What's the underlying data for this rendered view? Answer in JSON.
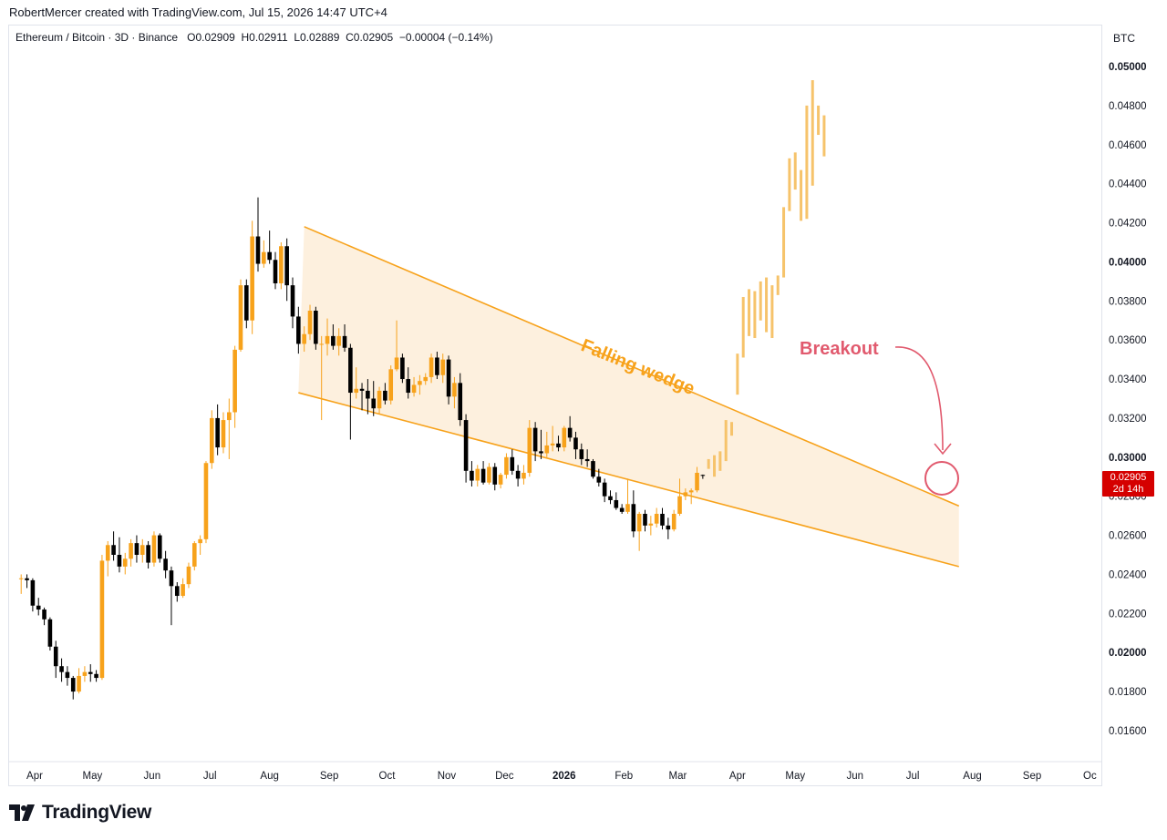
{
  "header": {
    "credit": "RobertMercer created with TradingView.com, Jul 15, 2026 14:47 UTC+4",
    "symbol": "Ethereum / Bitcoin · 3D · Binance",
    "ohlc": {
      "o_label": "O",
      "o": "0.02909",
      "h_label": "H",
      "h": "0.02911",
      "l_label": "L",
      "l": "0.02889",
      "c_label": "C",
      "c": "0.02905",
      "change": "−0.00004 (−0.14%)"
    },
    "unit": "BTC"
  },
  "brand": {
    "name": "TradingView"
  },
  "price_badge": {
    "price": "0.02905",
    "countdown": "2d 14h"
  },
  "colors": {
    "up": "#f7a21b",
    "down": "#000000",
    "wedge_line": "#f7a21b",
    "wedge_fill": "#fdf0de",
    "projection": "#f6c36b",
    "annotation": "#e15a6e",
    "wedge_text": "#f7a21b"
  },
  "annotations": {
    "wedge_label": "Falling wedge",
    "breakout_label": "Breakout"
  },
  "chart_data": {
    "type": "candlestick",
    "title": "Ethereum / Bitcoin · 3D · Binance",
    "ylabel": "BTC",
    "ylim": [
      0.015,
      0.052
    ],
    "y_ticks": [
      "0.05000",
      "0.04800",
      "0.04600",
      "0.04400",
      "0.04200",
      "0.04000",
      "0.03800",
      "0.03600",
      "0.03400",
      "0.03200",
      "0.03000",
      "0.02800",
      "0.02600",
      "0.02400",
      "0.02200",
      "0.02000",
      "0.01800",
      "0.01600"
    ],
    "y_ticks_bold": [
      "0.05000",
      "0.04000",
      "0.03000",
      "0.02000"
    ],
    "x_labels": [
      "Apr",
      "May",
      "Jun",
      "Jul",
      "Aug",
      "Sep",
      "Oct",
      "Nov",
      "Dec",
      "2026",
      "Feb",
      "Mar",
      "Apr",
      "May",
      "Jun",
      "Jul",
      "Aug",
      "Sep",
      "Oc"
    ],
    "x_label_dates": [
      "2025-04-01",
      "2025-05-01",
      "2025-06-01",
      "2025-07-01",
      "2025-08-01",
      "2025-09-01",
      "2025-10-01",
      "2025-11-01",
      "2025-12-01",
      "2026-01-01",
      "2026-02-01",
      "2026-03-01",
      "2026-04-01",
      "2026-05-01",
      "2026-06-01",
      "2026-07-01",
      "2026-08-01",
      "2026-09-01",
      "2026-10-01"
    ],
    "x_bold": [
      "2026"
    ],
    "start_date": "2025-03-25",
    "bar_days": 3,
    "ohlc": [
      [
        0.0238,
        0.024,
        0.023,
        0.0238
      ],
      [
        0.0238,
        0.024,
        0.0233,
        0.0237
      ],
      [
        0.0237,
        0.0238,
        0.0221,
        0.0224
      ],
      [
        0.0224,
        0.0228,
        0.0219,
        0.0222
      ],
      [
        0.0222,
        0.0223,
        0.0214,
        0.0217
      ],
      [
        0.0217,
        0.0218,
        0.0201,
        0.0203
      ],
      [
        0.0203,
        0.0206,
        0.0187,
        0.0193
      ],
      [
        0.0193,
        0.0197,
        0.0185,
        0.019
      ],
      [
        0.019,
        0.0193,
        0.0183,
        0.0187
      ],
      [
        0.0187,
        0.0188,
        0.0176,
        0.018
      ],
      [
        0.018,
        0.0192,
        0.0179,
        0.0188
      ],
      [
        0.0188,
        0.0193,
        0.0185,
        0.019
      ],
      [
        0.019,
        0.0194,
        0.0185,
        0.0189
      ],
      [
        0.0189,
        0.0191,
        0.0185,
        0.0187
      ],
      [
        0.0187,
        0.025,
        0.0186,
        0.0247
      ],
      [
        0.0247,
        0.0257,
        0.0239,
        0.0255
      ],
      [
        0.0255,
        0.0262,
        0.0247,
        0.025
      ],
      [
        0.025,
        0.0259,
        0.0241,
        0.0244
      ],
      [
        0.0244,
        0.0251,
        0.024,
        0.0248
      ],
      [
        0.0248,
        0.0258,
        0.0244,
        0.0256
      ],
      [
        0.0256,
        0.026,
        0.0246,
        0.025
      ],
      [
        0.025,
        0.0258,
        0.0246,
        0.0255
      ],
      [
        0.0255,
        0.0257,
        0.0243,
        0.0246
      ],
      [
        0.0246,
        0.0262,
        0.0244,
        0.026
      ],
      [
        0.026,
        0.0261,
        0.0246,
        0.0248
      ],
      [
        0.0248,
        0.0252,
        0.0238,
        0.0242
      ],
      [
        0.0242,
        0.0244,
        0.0214,
        0.0234
      ],
      [
        0.0234,
        0.0236,
        0.0226,
        0.0229
      ],
      [
        0.0229,
        0.0238,
        0.0228,
        0.0235
      ],
      [
        0.0235,
        0.0246,
        0.0233,
        0.0244
      ],
      [
        0.0244,
        0.0257,
        0.0242,
        0.0256
      ],
      [
        0.0256,
        0.026,
        0.025,
        0.0258
      ],
      [
        0.0258,
        0.0298,
        0.0256,
        0.0297
      ],
      [
        0.0297,
        0.0324,
        0.0294,
        0.032
      ],
      [
        0.032,
        0.0327,
        0.0301,
        0.0305
      ],
      [
        0.0305,
        0.0323,
        0.0302,
        0.0319
      ],
      [
        0.0319,
        0.033,
        0.0299,
        0.0323
      ],
      [
        0.0323,
        0.0357,
        0.0315,
        0.0355
      ],
      [
        0.0355,
        0.0391,
        0.0354,
        0.0388
      ],
      [
        0.0388,
        0.0391,
        0.0366,
        0.037
      ],
      [
        0.037,
        0.0421,
        0.0363,
        0.0413
      ],
      [
        0.0413,
        0.0433,
        0.0395,
        0.0399
      ],
      [
        0.0399,
        0.0411,
        0.0397,
        0.0405
      ],
      [
        0.0405,
        0.0416,
        0.0399,
        0.0401
      ],
      [
        0.0401,
        0.0405,
        0.0386,
        0.0389
      ],
      [
        0.0389,
        0.041,
        0.0386,
        0.0408
      ],
      [
        0.0408,
        0.0412,
        0.038,
        0.0388
      ],
      [
        0.0388,
        0.0392,
        0.0366,
        0.0372
      ],
      [
        0.0372,
        0.0377,
        0.0353,
        0.0358
      ],
      [
        0.0358,
        0.0367,
        0.0354,
        0.0363
      ],
      [
        0.0363,
        0.0378,
        0.036,
        0.0375
      ],
      [
        0.0375,
        0.0377,
        0.0355,
        0.0358
      ],
      [
        0.0358,
        0.0362,
        0.0319,
        0.0358
      ],
      [
        0.0358,
        0.0371,
        0.0352,
        0.0362
      ],
      [
        0.0362,
        0.0368,
        0.0355,
        0.0357
      ],
      [
        0.0357,
        0.0366,
        0.0352,
        0.0362
      ],
      [
        0.0362,
        0.0368,
        0.0354,
        0.0356
      ],
      [
        0.0356,
        0.0358,
        0.0309,
        0.0333
      ],
      [
        0.0333,
        0.0346,
        0.033,
        0.0335
      ],
      [
        0.0335,
        0.0338,
        0.0324,
        0.0334
      ],
      [
        0.0334,
        0.034,
        0.0322,
        0.033
      ],
      [
        0.033,
        0.0339,
        0.0321,
        0.0325
      ],
      [
        0.0325,
        0.0336,
        0.0322,
        0.0334
      ],
      [
        0.0334,
        0.0338,
        0.0327,
        0.0329
      ],
      [
        0.0329,
        0.0347,
        0.0327,
        0.0345
      ],
      [
        0.0345,
        0.037,
        0.0344,
        0.0351
      ],
      [
        0.0351,
        0.0353,
        0.0338,
        0.034
      ],
      [
        0.034,
        0.0346,
        0.033,
        0.0333
      ],
      [
        0.0333,
        0.0341,
        0.0331,
        0.0337
      ],
      [
        0.0337,
        0.0342,
        0.0332,
        0.0339
      ],
      [
        0.0339,
        0.0343,
        0.0337,
        0.0341
      ],
      [
        0.0341,
        0.0353,
        0.0338,
        0.0351
      ],
      [
        0.0351,
        0.0354,
        0.034,
        0.0342
      ],
      [
        0.0342,
        0.0353,
        0.0338,
        0.035
      ],
      [
        0.035,
        0.0352,
        0.0327,
        0.0331
      ],
      [
        0.0331,
        0.0341,
        0.0325,
        0.0338
      ],
      [
        0.0338,
        0.0343,
        0.0316,
        0.0319
      ],
      [
        0.0319,
        0.0322,
        0.0287,
        0.0293
      ],
      [
        0.0293,
        0.0298,
        0.0285,
        0.0288
      ],
      [
        0.0288,
        0.0296,
        0.0285,
        0.0294
      ],
      [
        0.0294,
        0.0298,
        0.0286,
        0.0287
      ],
      [
        0.0287,
        0.0297,
        0.0286,
        0.0295
      ],
      [
        0.0295,
        0.0297,
        0.0283,
        0.0286
      ],
      [
        0.0286,
        0.0292,
        0.0284,
        0.0291
      ],
      [
        0.0291,
        0.0302,
        0.0289,
        0.03
      ],
      [
        0.03,
        0.0304,
        0.0291,
        0.0293
      ],
      [
        0.0293,
        0.0296,
        0.0285,
        0.0289
      ],
      [
        0.0289,
        0.0296,
        0.0286,
        0.0292
      ],
      [
        0.0292,
        0.0319,
        0.029,
        0.0315
      ],
      [
        0.0315,
        0.0318,
        0.0298,
        0.0303
      ],
      [
        0.0303,
        0.0314,
        0.0299,
        0.0302
      ],
      [
        0.0302,
        0.0313,
        0.03,
        0.0306
      ],
      [
        0.0306,
        0.0316,
        0.0303,
        0.0307
      ],
      [
        0.0307,
        0.0311,
        0.0303,
        0.0305
      ],
      [
        0.0305,
        0.0316,
        0.0303,
        0.0315
      ],
      [
        0.0315,
        0.0321,
        0.0308,
        0.031
      ],
      [
        0.031,
        0.0313,
        0.0299,
        0.0304
      ],
      [
        0.0304,
        0.0307,
        0.0296,
        0.0299
      ],
      [
        0.0299,
        0.0304,
        0.0295,
        0.0298
      ],
      [
        0.0298,
        0.0299,
        0.0289,
        0.029
      ],
      [
        0.029,
        0.0294,
        0.0285,
        0.0287
      ],
      [
        0.0287,
        0.0289,
        0.0277,
        0.028
      ],
      [
        0.028,
        0.0283,
        0.0276,
        0.0278
      ],
      [
        0.0278,
        0.0282,
        0.0273,
        0.0274
      ],
      [
        0.0274,
        0.0276,
        0.0271,
        0.0272
      ],
      [
        0.0272,
        0.0289,
        0.0271,
        0.0276
      ],
      [
        0.0276,
        0.0283,
        0.0259,
        0.0262
      ],
      [
        0.0262,
        0.0272,
        0.0252,
        0.0271
      ],
      [
        0.0271,
        0.0273,
        0.0262,
        0.0265
      ],
      [
        0.0265,
        0.027,
        0.026,
        0.0266
      ],
      [
        0.0266,
        0.0274,
        0.0264,
        0.0271
      ],
      [
        0.0271,
        0.0274,
        0.0263,
        0.0265
      ],
      [
        0.0265,
        0.0269,
        0.0258,
        0.0263
      ],
      [
        0.0263,
        0.0273,
        0.0262,
        0.0271
      ],
      [
        0.0271,
        0.0289,
        0.027,
        0.028
      ],
      [
        0.028,
        0.0284,
        0.0278,
        0.0282
      ],
      [
        0.0282,
        0.0284,
        0.0276,
        0.0283
      ],
      [
        0.0283,
        0.0295,
        0.0282,
        0.0292
      ],
      [
        0.02909,
        0.02911,
        0.02889,
        0.02905
      ]
    ],
    "projection": [
      [
        0.0294,
        0.0299
      ],
      [
        0.029,
        0.0301
      ],
      [
        0.0293,
        0.0303
      ],
      [
        0.0298,
        0.0319
      ],
      [
        0.0311,
        0.0318
      ],
      [
        0.0332,
        0.0353
      ],
      [
        0.0351,
        0.0382
      ],
      [
        0.0362,
        0.0386
      ],
      [
        0.0361,
        0.0385
      ],
      [
        0.037,
        0.039
      ],
      [
        0.0364,
        0.0392
      ],
      [
        0.0361,
        0.0388
      ],
      [
        0.0383,
        0.0393
      ],
      [
        0.0392,
        0.0428
      ],
      [
        0.0426,
        0.0453
      ],
      [
        0.0437,
        0.0456
      ],
      [
        0.0421,
        0.0447
      ],
      [
        0.0422,
        0.048
      ],
      [
        0.0439,
        0.0493
      ],
      [
        0.0465,
        0.048
      ],
      [
        0.0454,
        0.0475
      ]
    ],
    "wedge": {
      "upper": [
        [
          "2025-08-19",
          0.0418
        ],
        [
          "2026-07-25",
          0.0275
        ]
      ],
      "lower": [
        [
          "2025-08-16",
          0.0333
        ],
        [
          "2026-07-25",
          0.0244
        ]
      ]
    },
    "last_price": "0.02905"
  }
}
